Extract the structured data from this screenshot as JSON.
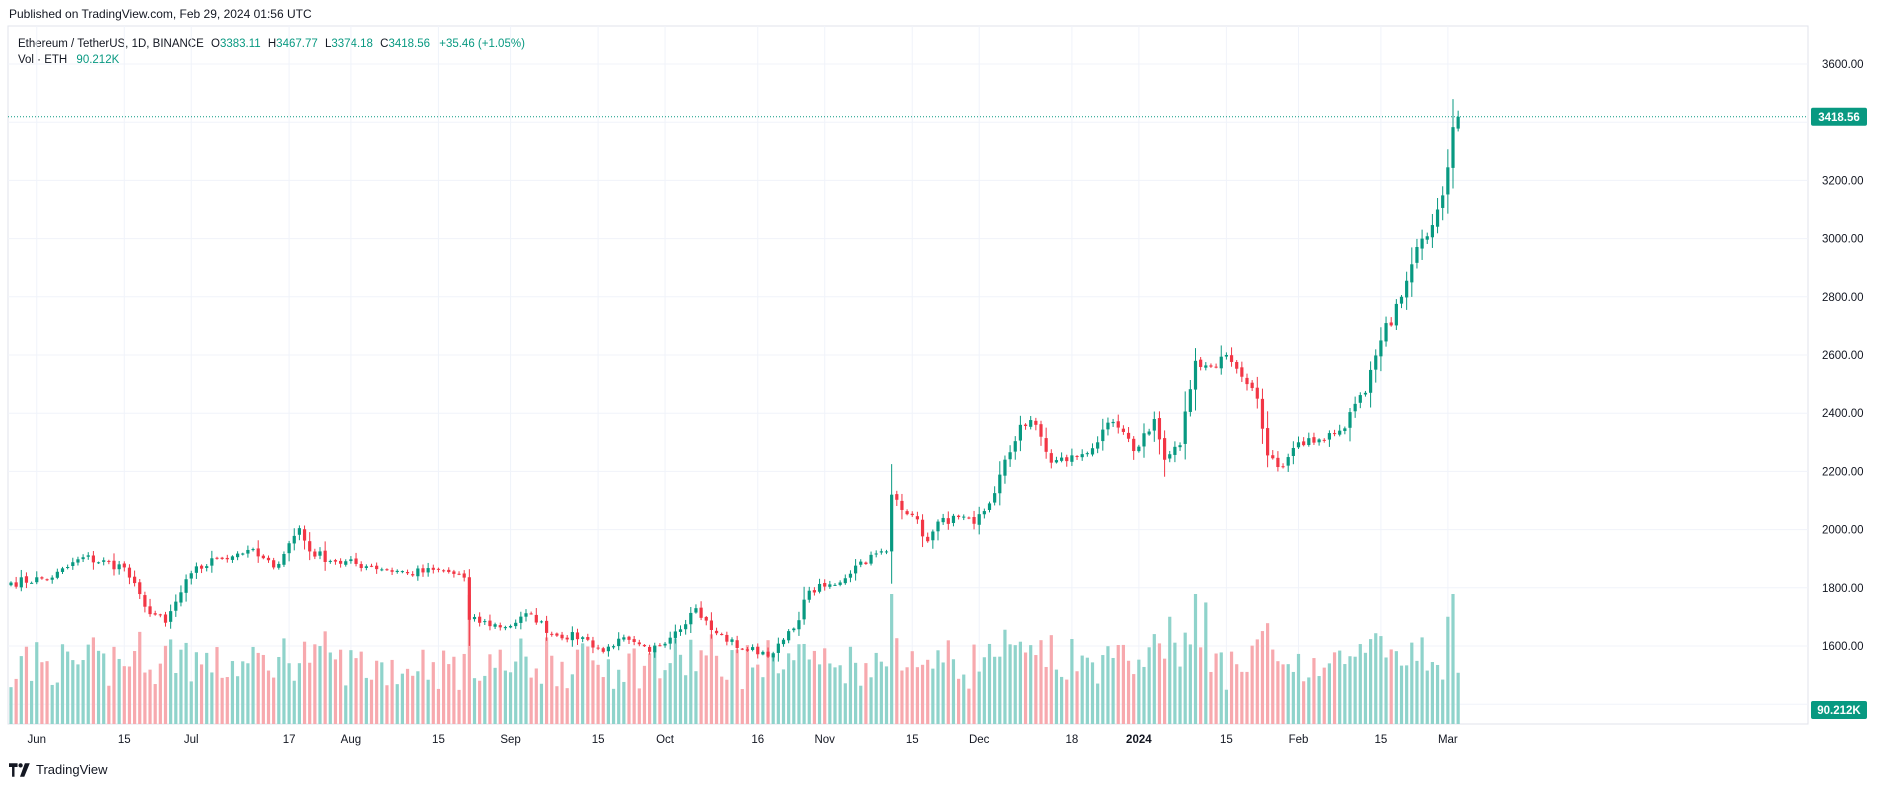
{
  "header": {
    "published": "Published on TradingView.com, Feb 29, 2024 01:56 UTC"
  },
  "legend": {
    "symbol": "Ethereum / TetherUS, 1D, BINANCE",
    "o_label": "O",
    "o_value": "3383.11",
    "h_label": "H",
    "h_value": "3467.77",
    "l_label": "L",
    "l_value": "3374.18",
    "c_label": "C",
    "c_value": "3418.56",
    "change": "+35.46 (+1.05%)",
    "vol_label": "Vol · ETH",
    "vol_value": "90.212K"
  },
  "footer": {
    "brand": "TradingView"
  },
  "colors": {
    "up": "#089981",
    "down": "#f23645",
    "up_vol": "#8fd3cb",
    "down_vol": "#f7a9ae",
    "grid": "#f0f3fa",
    "axis_text": "#131722"
  },
  "chart_data": {
    "type": "candlestick",
    "title": "Ethereum / TetherUS, 1D, BINANCE",
    "y_ticks": [
      "1600.00",
      "1800.00",
      "2000.00",
      "2200.00",
      "2400.00",
      "2600.00",
      "2800.00",
      "3000.00",
      "3200.00",
      "3600.00"
    ],
    "y_tick_values": [
      1600,
      1800,
      2000,
      2200,
      2400,
      2600,
      2800,
      3000,
      3200,
      3600
    ],
    "y_range": [
      1340,
      3630
    ],
    "x_ticks": [
      "Jun",
      "15",
      "Jul",
      "17",
      "Aug",
      "15",
      "Sep",
      "15",
      "Oct",
      "16",
      "Nov",
      "15",
      "Dec",
      "18",
      "2024",
      "15",
      "Feb",
      "15",
      "Mar"
    ],
    "x_tick_days": [
      5,
      22,
      35,
      54,
      66,
      83,
      97,
      114,
      127,
      145,
      158,
      175,
      188,
      206,
      219,
      236,
      250,
      266,
      279
    ],
    "last_price_label": "3418.56",
    "last_price": 3418.56,
    "last_volume_label": "90.212K",
    "anchors": [
      {
        "d": 0,
        "p": 1818
      },
      {
        "d": 8,
        "p": 1835
      },
      {
        "d": 14,
        "p": 1905
      },
      {
        "d": 22,
        "p": 1870
      },
      {
        "d": 26,
        "p": 1735
      },
      {
        "d": 30,
        "p": 1680
      },
      {
        "d": 35,
        "p": 1850
      },
      {
        "d": 40,
        "p": 1900
      },
      {
        "d": 46,
        "p": 1930
      },
      {
        "d": 51,
        "p": 1870
      },
      {
        "d": 56,
        "p": 2005
      },
      {
        "d": 58,
        "p": 1925
      },
      {
        "d": 63,
        "p": 1890
      },
      {
        "d": 70,
        "p": 1875
      },
      {
        "d": 77,
        "p": 1850
      },
      {
        "d": 84,
        "p": 1860
      },
      {
        "d": 88,
        "p": 1835
      },
      {
        "d": 89,
        "p": 1690
      },
      {
        "d": 96,
        "p": 1665
      },
      {
        "d": 101,
        "p": 1710
      },
      {
        "d": 105,
        "p": 1640
      },
      {
        "d": 111,
        "p": 1630
      },
      {
        "d": 115,
        "p": 1580
      },
      {
        "d": 118,
        "p": 1625
      },
      {
        "d": 124,
        "p": 1580
      },
      {
        "d": 129,
        "p": 1650
      },
      {
        "d": 133,
        "p": 1730
      },
      {
        "d": 136,
        "p": 1655
      },
      {
        "d": 142,
        "p": 1590
      },
      {
        "d": 148,
        "p": 1575
      },
      {
        "d": 152,
        "p": 1660
      },
      {
        "d": 155,
        "p": 1790
      },
      {
        "d": 160,
        "p": 1810
      },
      {
        "d": 165,
        "p": 1890
      },
      {
        "d": 170,
        "p": 1925
      },
      {
        "d": 171,
        "p": 2120
      },
      {
        "d": 175,
        "p": 2050
      },
      {
        "d": 178,
        "p": 1960
      },
      {
        "d": 181,
        "p": 2040
      },
      {
        "d": 187,
        "p": 2020
      },
      {
        "d": 190,
        "p": 2090
      },
      {
        "d": 196,
        "p": 2360
      },
      {
        "d": 199,
        "p": 2360
      },
      {
        "d": 202,
        "p": 2230
      },
      {
        "d": 207,
        "p": 2250
      },
      {
        "d": 211,
        "p": 2300
      },
      {
        "d": 214,
        "p": 2370
      },
      {
        "d": 218,
        "p": 2270
      },
      {
        "d": 222,
        "p": 2380
      },
      {
        "d": 224,
        "p": 2240
      },
      {
        "d": 227,
        "p": 2290
      },
      {
        "d": 230,
        "p": 2580
      },
      {
        "d": 233,
        "p": 2560
      },
      {
        "d": 236,
        "p": 2600
      },
      {
        "d": 240,
        "p": 2500
      },
      {
        "d": 242,
        "p": 2450
      },
      {
        "d": 244,
        "p": 2255
      },
      {
        "d": 246,
        "p": 2215
      },
      {
        "d": 250,
        "p": 2300
      },
      {
        "d": 254,
        "p": 2310
      },
      {
        "d": 258,
        "p": 2340
      },
      {
        "d": 263,
        "p": 2470
      },
      {
        "d": 266,
        "p": 2650
      },
      {
        "d": 270,
        "p": 2800
      },
      {
        "d": 274,
        "p": 3000
      },
      {
        "d": 277,
        "p": 3100
      },
      {
        "d": 279,
        "p": 3245
      },
      {
        "d": 280,
        "p": 3383
      },
      {
        "d": 281,
        "p": 3418.56
      }
    ],
    "volume_spikes": [
      {
        "d": 24,
        "v": 1.0
      },
      {
        "d": 40,
        "v": 1.0
      },
      {
        "d": 47,
        "v": 1.0
      },
      {
        "d": 54,
        "v": 0.85
      },
      {
        "d": 62,
        "v": 1.0
      },
      {
        "d": 89,
        "v": 1.0
      },
      {
        "d": 171,
        "v": 2.6
      },
      {
        "d": 172,
        "v": 1.2
      },
      {
        "d": 197,
        "v": 1.0
      },
      {
        "d": 219,
        "v": 0.9
      },
      {
        "d": 225,
        "v": 1.5
      },
      {
        "d": 230,
        "v": 2.0
      },
      {
        "d": 232,
        "v": 1.7
      },
      {
        "d": 243,
        "v": 1.3
      },
      {
        "d": 279,
        "v": 1.5
      },
      {
        "d": 280,
        "v": 2.0
      }
    ]
  }
}
